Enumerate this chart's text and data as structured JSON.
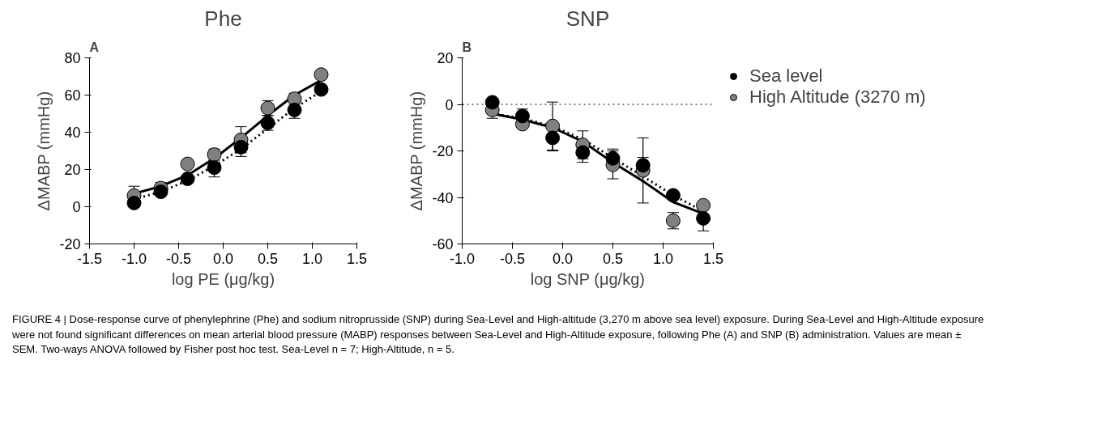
{
  "chart_data": [
    {
      "type": "scatter",
      "title": "Phe",
      "xlabel": "log PE (μg/kg)",
      "ylabel": "ΔMABP (mmHg)",
      "annotations": [
        "A"
      ],
      "grid": false,
      "xlim": [
        -1.5,
        1.5
      ],
      "xticks": [
        {
          "value": -1.5,
          "label": "-1.5"
        },
        {
          "value": -1,
          "label": "-1.0"
        },
        {
          "value": -0.5,
          "label": "-0.5"
        },
        {
          "value": 0,
          "label": "0.0"
        },
        {
          "value": 0.5,
          "label": "0.5"
        },
        {
          "value": 1,
          "label": "1.0"
        },
        {
          "value": 1.5,
          "label": "1.5"
        }
      ],
      "ylim": [
        -20,
        80
      ],
      "yticks": [
        -20,
        0,
        20,
        40,
        60,
        80
      ],
      "series": [
        {
          "type": "line",
          "color": "#000000",
          "line_style": "solid",
          "x": [
            -1,
            -0.7,
            -0.4,
            -0.1,
            0.2,
            0.5,
            0.8,
            1.1
          ],
          "values": [
            7,
            11,
            17,
            26,
            37,
            49,
            60,
            68
          ]
        },
        {
          "type": "line",
          "color": "#000000",
          "line_style": "dotted",
          "x": [
            -1,
            -0.7,
            -0.4,
            -0.1,
            0.2,
            0.5,
            0.8,
            1.1
          ],
          "values": [
            4,
            8,
            14,
            22,
            31,
            42,
            53,
            62
          ]
        },
        {
          "color": "#808080",
          "marker": "circle",
          "x": [
            -1,
            -0.7,
            -0.4,
            -0.1,
            0.2,
            0.5,
            0.8,
            1.1
          ],
          "values": [
            6,
            10,
            23,
            28,
            36,
            53,
            58,
            71
          ],
          "errors": [
            5,
            3,
            null,
            3,
            7,
            4,
            3,
            null
          ]
        },
        {
          "color": "#000000",
          "marker": "circle",
          "x": [
            -1,
            -0.7,
            -0.4,
            -0.1,
            0.2,
            0.5,
            0.8,
            1.1
          ],
          "values": [
            2,
            8,
            15,
            21,
            32,
            45,
            52,
            63
          ],
          "errors": [
            null,
            null,
            null,
            5,
            5,
            4,
            4.5,
            null
          ]
        }
      ]
    },
    {
      "type": "scatter",
      "title": "SNP",
      "xlabel": "log SNP (μg/kg)",
      "ylabel": "ΔMABP (mmHg)",
      "annotations": [
        "B",
        "FIGURE 4 | Dose-response curve of phenylephrine (Phe) and sodium nitroprusside (SNP) during Sea-Level and High-altitude (3,270 m above sea level) exposure. During Sea-Level and High-Altitude exposure were not found significant differences on mean arterial blood pressure (MABP) responses between Sea-Level and High-Altitude exposure, following Phe (A) and SNP (B) administration. Values are mean ± SEM. Two-ways ANOVA followed by Fisher post hoc test. Sea-Level n = 7; High-Altitude, n = 5."
      ],
      "grid": false,
      "legend": "right",
      "xlim": [
        -1,
        1.5
      ],
      "xticks": [
        {
          "value": -1,
          "label": "-1.0"
        },
        {
          "value": -0.5,
          "label": "-0.5"
        },
        {
          "value": 0,
          "label": "0.0"
        },
        {
          "value": 0.5,
          "label": "0.5"
        },
        {
          "value": 1,
          "label": "1.0"
        },
        {
          "value": 1.5,
          "label": "1.5"
        }
      ],
      "ylim": [
        -60,
        20
      ],
      "yticks": [
        -60,
        -40,
        -20,
        0,
        20
      ],
      "ref_lines": [
        {
          "axis": "y",
          "value": 0,
          "label": null,
          "color": "#000000",
          "line_style": "dotted"
        }
      ],
      "series": [
        {
          "type": "line",
          "color": "#000000",
          "line_style": "solid",
          "x": [
            -0.7,
            -0.4,
            -0.1,
            0.2,
            0.5,
            0.8,
            1.1,
            1.4
          ],
          "values": [
            -4,
            -6.5,
            -10,
            -16,
            -25,
            -33,
            -42,
            -47
          ]
        },
        {
          "type": "line",
          "color": "#000000",
          "line_style": "dotted",
          "x": [
            -0.7,
            -0.4,
            -0.1,
            0.2,
            0.5,
            0.8,
            1.1,
            1.4
          ],
          "values": [
            -4,
            -6,
            -9.5,
            -15,
            -23,
            -31,
            -39,
            -46
          ]
        },
        {
          "name": "High Altitude (3270 m)",
          "color": "#808080",
          "marker": "circle",
          "x": [
            -0.7,
            -0.4,
            -0.1,
            0.2,
            0.5,
            0.8,
            1.1,
            1.4
          ],
          "values": [
            -2.4,
            -8.5,
            -9.3,
            -17.4,
            -26,
            -28.4,
            -50,
            -43.4
          ],
          "errors": [
            3.6,
            null,
            10.3,
            6,
            6,
            14,
            3.5,
            null
          ]
        },
        {
          "name": "Sea level",
          "color": "#000000",
          "marker": "circle",
          "x": [
            -0.7,
            -0.4,
            -0.1,
            0.2,
            0.5,
            0.8,
            1.1,
            1.4
          ],
          "values": [
            0.9,
            -5,
            -14.4,
            -20.7,
            -23.2,
            -26.2,
            -39.1,
            -49
          ],
          "errors": [
            null,
            3,
            5.6,
            4.2,
            4,
            3.4,
            null,
            5.4
          ]
        }
      ]
    }
  ]
}
